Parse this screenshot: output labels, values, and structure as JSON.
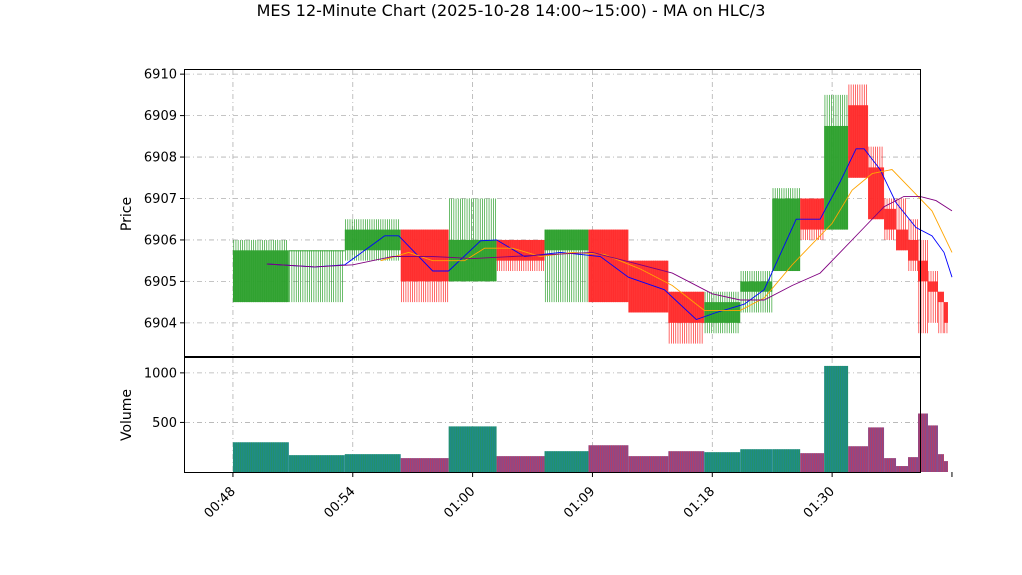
{
  "chart_data": {
    "type": "candlestick",
    "title": "MES 12-Minute Chart (2025-10-28 14:00~15:00) - MA on HLC/3",
    "price_panel": {
      "ylabel": "Price",
      "ylim": [
        6903.2,
        6910.1
      ],
      "yticks": [
        6904,
        6905,
        6906,
        6907,
        6908,
        6909,
        6910
      ],
      "grid": true
    },
    "volume_panel": {
      "ylabel": "Volume",
      "ylim": [
        0,
        1150
      ],
      "yticks": [
        500,
        1000
      ],
      "grid": true
    },
    "x_axis": {
      "range": [
        -2.4,
        34.4
      ],
      "tick_positions": [
        0,
        6,
        12,
        18,
        24,
        30,
        36
      ],
      "tick_labels": [
        "00:48",
        "00:54",
        "01:00",
        "01:09",
        "01:18",
        "01:30",
        ""
      ]
    },
    "colors": {
      "up": "#2ca02c",
      "down": "#ff2a2a",
      "volume_up": "#1f8a8a",
      "volume_down": "#8a4a8a",
      "ma_fast": "#0000ff",
      "ma_mid": "#ffa500",
      "ma_slow": "#800080"
    },
    "candles": [
      {
        "x0": 0.0,
        "x1": 2.8,
        "open": 6904.5,
        "high": 6906.0,
        "low": 6904.5,
        "close": 6905.75,
        "volume": 300
      },
      {
        "x0": 2.8,
        "x1": 5.6,
        "open": 6905.75,
        "high": 6905.75,
        "low": 6904.5,
        "close": 6905.75,
        "volume": 170
      },
      {
        "x0": 5.6,
        "x1": 8.4,
        "open": 6905.75,
        "high": 6906.5,
        "low": 6905.5,
        "close": 6906.25,
        "volume": 180
      },
      {
        "x0": 8.4,
        "x1": 10.8,
        "open": 6906.25,
        "high": 6906.25,
        "low": 6904.5,
        "close": 6905.0,
        "volume": 140
      },
      {
        "x0": 10.8,
        "x1": 13.2,
        "open": 6905.0,
        "high": 6907.0,
        "low": 6905.0,
        "close": 6906.0,
        "volume": 460
      },
      {
        "x0": 13.2,
        "x1": 15.6,
        "open": 6906.0,
        "high": 6906.0,
        "low": 6905.25,
        "close": 6905.5,
        "volume": 160
      },
      {
        "x0": 15.6,
        "x1": 17.8,
        "open": 6905.75,
        "high": 6906.25,
        "low": 6904.5,
        "close": 6906.25,
        "volume": 210
      },
      {
        "x0": 17.8,
        "x1": 19.8,
        "open": 6906.25,
        "high": 6906.25,
        "low": 6904.5,
        "close": 6904.5,
        "volume": 270
      },
      {
        "x0": 19.8,
        "x1": 21.8,
        "open": 6905.5,
        "high": 6905.5,
        "low": 6904.25,
        "close": 6904.25,
        "volume": 160
      },
      {
        "x0": 21.8,
        "x1": 23.6,
        "open": 6904.75,
        "high": 6904.75,
        "low": 6903.5,
        "close": 6904.0,
        "volume": 210
      },
      {
        "x0": 23.6,
        "x1": 25.4,
        "open": 6904.0,
        "high": 6904.75,
        "low": 6903.75,
        "close": 6904.5,
        "volume": 200
      },
      {
        "x0": 25.4,
        "x1": 27.0,
        "open": 6904.75,
        "high": 6905.25,
        "low": 6904.25,
        "close": 6905.0,
        "volume": 230
      },
      {
        "x0": 27.0,
        "x1": 28.4,
        "open": 6905.25,
        "high": 6907.25,
        "low": 6905.25,
        "close": 6907.0,
        "volume": 230
      },
      {
        "x0": 28.4,
        "x1": 29.6,
        "open": 6907.0,
        "high": 6907.0,
        "low": 6906.0,
        "close": 6906.25,
        "volume": 190
      },
      {
        "x0": 29.6,
        "x1": 30.8,
        "open": 6906.25,
        "high": 6909.5,
        "low": 6906.25,
        "close": 6908.75,
        "volume": 1070
      },
      {
        "x0": 30.8,
        "x1": 31.8,
        "open": 6909.25,
        "high": 6909.75,
        "low": 6907.5,
        "close": 6907.5,
        "volume": 260
      },
      {
        "x0": 31.8,
        "x1": 32.6,
        "open": 6907.75,
        "high": 6908.25,
        "low": 6906.5,
        "close": 6906.5,
        "volume": 450
      },
      {
        "x0": 32.6,
        "x1": 33.2,
        "open": 6906.75,
        "high": 6907.0,
        "low": 6906.0,
        "close": 6906.25,
        "volume": 140
      },
      {
        "x0": 33.2,
        "x1": 33.8,
        "open": 6906.25,
        "high": 6907.0,
        "low": 6905.75,
        "close": 6905.75,
        "volume": 60
      },
      {
        "x0": 33.8,
        "x1": 34.3,
        "open": 6906.0,
        "high": 6906.5,
        "low": 6905.25,
        "close": 6905.5,
        "volume": 150
      },
      {
        "x0": 34.3,
        "x1": 34.8,
        "open": 6905.5,
        "high": 6906.0,
        "low": 6903.75,
        "close": 6905.0,
        "volume": 590
      },
      {
        "x0": 34.8,
        "x1": 35.3,
        "open": 6905.0,
        "high": 6905.25,
        "low": 6904.0,
        "close": 6904.75,
        "volume": 470
      },
      {
        "x0": 35.3,
        "x1": 35.6,
        "open": 6904.75,
        "high": 6904.75,
        "low": 6903.75,
        "close": 6904.5,
        "volume": 180
      },
      {
        "x0": 35.6,
        "x1": 35.8,
        "open": 6904.5,
        "high": 6904.5,
        "low": 6903.75,
        "close": 6904.0,
        "volume": 110
      }
    ],
    "ma_series": [
      {
        "color_key": "ma_fast",
        "points": [
          [
            1.7,
            6905.42
          ],
          [
            4.1,
            6905.35
          ],
          [
            5.6,
            6905.4
          ],
          [
            7.6,
            6906.1
          ],
          [
            8.3,
            6906.1
          ],
          [
            10.0,
            6905.25
          ],
          [
            10.8,
            6905.25
          ],
          [
            12.4,
            6905.98
          ],
          [
            13.2,
            6906.0
          ],
          [
            14.6,
            6905.6
          ],
          [
            16.4,
            6905.7
          ],
          [
            18.4,
            6905.6
          ],
          [
            19.8,
            6905.1
          ],
          [
            21.6,
            6904.8
          ],
          [
            23.2,
            6904.08
          ],
          [
            24.2,
            6904.25
          ],
          [
            25.6,
            6904.45
          ],
          [
            26.6,
            6904.8
          ],
          [
            28.2,
            6906.5
          ],
          [
            29.4,
            6906.5
          ],
          [
            30.4,
            6907.4
          ],
          [
            31.2,
            6908.2
          ],
          [
            31.6,
            6908.2
          ],
          [
            32.4,
            6907.7
          ],
          [
            33.2,
            6906.9
          ],
          [
            34.2,
            6906.3
          ],
          [
            35.0,
            6906.1
          ],
          [
            35.6,
            6905.7
          ],
          [
            36.0,
            6905.1
          ]
        ]
      },
      {
        "color_key": "ma_mid",
        "points": [
          [
            7.4,
            6905.5
          ],
          [
            8.8,
            6905.7
          ],
          [
            10.0,
            6905.5
          ],
          [
            11.6,
            6905.5
          ],
          [
            12.6,
            6905.8
          ],
          [
            14.0,
            6905.8
          ],
          [
            15.4,
            6905.6
          ],
          [
            17.0,
            6905.7
          ],
          [
            18.6,
            6905.65
          ],
          [
            20.4,
            6905.3
          ],
          [
            22.0,
            6904.9
          ],
          [
            23.6,
            6904.3
          ],
          [
            25.4,
            6904.3
          ],
          [
            26.6,
            6904.6
          ],
          [
            28.0,
            6905.4
          ],
          [
            29.2,
            6906.0
          ],
          [
            30.0,
            6906.4
          ],
          [
            31.0,
            6907.2
          ],
          [
            32.0,
            6907.6
          ],
          [
            33.0,
            6907.7
          ],
          [
            34.0,
            6907.2
          ],
          [
            35.0,
            6906.7
          ],
          [
            35.6,
            6906.1
          ],
          [
            36.0,
            6905.7
          ]
        ]
      },
      {
        "color_key": "ma_slow",
        "points": [
          [
            1.7,
            6905.42
          ],
          [
            4.1,
            6905.35
          ],
          [
            6.0,
            6905.4
          ],
          [
            8.0,
            6905.6
          ],
          [
            10.0,
            6905.6
          ],
          [
            12.0,
            6905.55
          ],
          [
            14.0,
            6905.6
          ],
          [
            16.0,
            6905.65
          ],
          [
            18.0,
            6905.7
          ],
          [
            20.0,
            6905.45
          ],
          [
            22.0,
            6905.2
          ],
          [
            24.0,
            6904.7
          ],
          [
            25.4,
            6904.55
          ],
          [
            26.6,
            6904.55
          ],
          [
            28.0,
            6904.9
          ],
          [
            29.4,
            6905.2
          ],
          [
            30.4,
            6905.7
          ],
          [
            31.6,
            6906.3
          ],
          [
            32.6,
            6906.8
          ],
          [
            33.6,
            6907.05
          ],
          [
            34.4,
            6907.05
          ],
          [
            35.2,
            6906.95
          ],
          [
            36.0,
            6906.7
          ]
        ]
      }
    ]
  }
}
